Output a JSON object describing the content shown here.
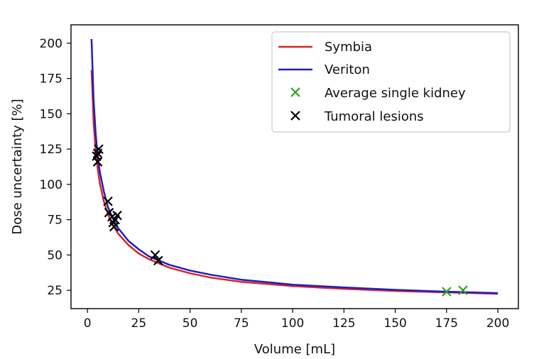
{
  "chart_data": {
    "type": "line",
    "xlabel": "Volume [mL]",
    "ylabel": "Dose uncertainty [%]",
    "xlim": [
      -8,
      210
    ],
    "ylim": [
      12,
      213
    ],
    "xticks": [
      0,
      25,
      50,
      75,
      100,
      125,
      150,
      175,
      200
    ],
    "yticks": [
      25,
      50,
      75,
      100,
      125,
      150,
      175,
      200
    ],
    "grid": false,
    "legend_position": "top-right",
    "series": [
      {
        "name": "Symbia",
        "kind": "line",
        "color": "#d62728",
        "x": [
          2,
          3,
          4,
          5,
          6,
          8,
          10,
          12,
          15,
          20,
          25,
          30,
          35,
          40,
          50,
          60,
          75,
          100,
          125,
          150,
          175,
          200
        ],
        "y": [
          181,
          144,
          124,
          111,
          101,
          88,
          79,
          72,
          65,
          57,
          51,
          47,
          44,
          41,
          37,
          34,
          31,
          28,
          26,
          24.5,
          23.5,
          22.5
        ]
      },
      {
        "name": "Veriton",
        "kind": "line",
        "color": "#1f1fbf",
        "x": [
          2,
          3,
          4,
          5,
          6,
          8,
          10,
          12,
          15,
          20,
          25,
          30,
          35,
          40,
          50,
          60,
          75,
          100,
          125,
          150,
          175,
          200
        ],
        "y": [
          203,
          160,
          136,
          120,
          109,
          95,
          84,
          77,
          69,
          60,
          54,
          49,
          46,
          43,
          39,
          36,
          32.5,
          29,
          27,
          25.3,
          24,
          23
        ]
      },
      {
        "name": "Average single kidney",
        "kind": "scatter",
        "color": "#2ca02c",
        "x": [
          175,
          183
        ],
        "y": [
          24,
          25
        ]
      },
      {
        "name": "Tumoral lesions",
        "kind": "scatter",
        "color": "#000000",
        "x": [
          4.5,
          5,
          5.5,
          5,
          10,
          10.5,
          12,
          13.5,
          14.5,
          12.5,
          13,
          33,
          34.5
        ],
        "y": [
          120,
          116,
          125,
          122,
          88,
          80,
          77,
          75,
          78,
          73,
          70,
          50,
          46
        ]
      }
    ]
  }
}
